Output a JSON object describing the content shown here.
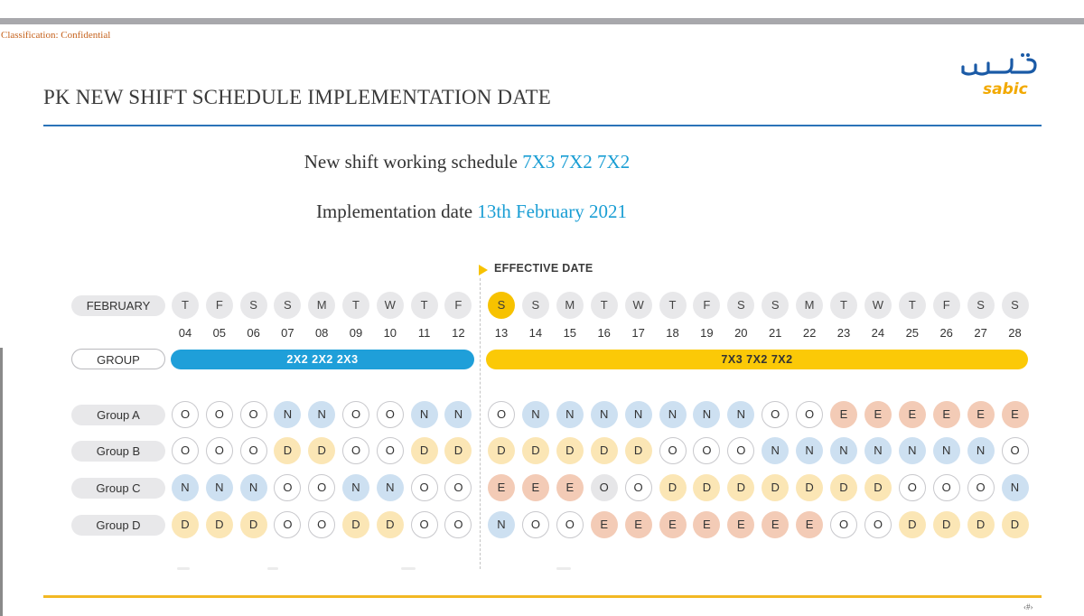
{
  "header": {
    "classification": "Classification: Confidential",
    "title": "PK NEW SHIFT SCHEDULE IMPLEMENTATION DATE",
    "logo_arabic": "سابك",
    "logo_latin": "sabic",
    "page_number": "‹#›"
  },
  "summary": {
    "schedule_prefix": "New shift working schedule ",
    "schedule_value": "7X3 7X2 7X2",
    "date_prefix": "Implementation date ",
    "date_value": "13th February 2021"
  },
  "calendar": {
    "effective_label": "EFFECTIVE DATE",
    "month_label": "FEBRUARY",
    "group_label": "GROUP",
    "old_pattern": "2X2 2X2 2X3",
    "new_pattern": "7X3 7X2 7X2",
    "days": [
      {
        "weekday": "T",
        "date": "04"
      },
      {
        "weekday": "F",
        "date": "05"
      },
      {
        "weekday": "S",
        "date": "06"
      },
      {
        "weekday": "S",
        "date": "07"
      },
      {
        "weekday": "M",
        "date": "08"
      },
      {
        "weekday": "T",
        "date": "09"
      },
      {
        "weekday": "W",
        "date": "10"
      },
      {
        "weekday": "T",
        "date": "11"
      },
      {
        "weekday": "F",
        "date": "12"
      },
      {
        "weekday": "S",
        "date": "13"
      },
      {
        "weekday": "S",
        "date": "14"
      },
      {
        "weekday": "M",
        "date": "15"
      },
      {
        "weekday": "T",
        "date": "16"
      },
      {
        "weekday": "W",
        "date": "17"
      },
      {
        "weekday": "T",
        "date": "18"
      },
      {
        "weekday": "F",
        "date": "19"
      },
      {
        "weekday": "S",
        "date": "20"
      },
      {
        "weekday": "S",
        "date": "21"
      },
      {
        "weekday": "M",
        "date": "22"
      },
      {
        "weekday": "T",
        "date": "23"
      },
      {
        "weekday": "W",
        "date": "24"
      },
      {
        "weekday": "T",
        "date": "25"
      },
      {
        "weekday": "F",
        "date": "26"
      },
      {
        "weekday": "S",
        "date": "27"
      },
      {
        "weekday": "S",
        "date": "28"
      }
    ],
    "effective_index": 9,
    "groups": [
      {
        "name": "Group A",
        "shifts": [
          "O",
          "O",
          "O",
          "N",
          "N",
          "O",
          "O",
          "N",
          "N",
          "O",
          "N",
          "N",
          "N",
          "N",
          "N",
          "N",
          "N",
          "O",
          "O",
          "E",
          "E",
          "E",
          "E",
          "E",
          "E"
        ]
      },
      {
        "name": "Group B",
        "shifts": [
          "O",
          "O",
          "O",
          "D",
          "D",
          "O",
          "O",
          "D",
          "D",
          "D",
          "D",
          "D",
          "D",
          "D",
          "O",
          "O",
          "O",
          "N",
          "N",
          "N",
          "N",
          "N",
          "N",
          "N",
          "O"
        ]
      },
      {
        "name": "Group C",
        "shifts": [
          "N",
          "N",
          "N",
          "O",
          "O",
          "N",
          "N",
          "O",
          "O",
          "E",
          "E",
          "E",
          "O",
          "O",
          "D",
          "D",
          "D",
          "D",
          "D",
          "D",
          "D",
          "O",
          "O",
          "O",
          "N"
        ]
      },
      {
        "name": "Group D",
        "shifts": [
          "D",
          "D",
          "D",
          "O",
          "O",
          "D",
          "D",
          "O",
          "O",
          "N",
          "O",
          "O",
          "E",
          "E",
          "E",
          "E",
          "E",
          "E",
          "E",
          "O",
          "O",
          "D",
          "D",
          "D",
          "D"
        ]
      }
    ],
    "colors": {
      "N": "#cde0f1",
      "D": "#fbe6b5",
      "E": "#f3cbb6",
      "O": "#ffffff",
      "effective": "#f7c200",
      "old_bar": "#1f9fd9",
      "new_bar": "#fbc907"
    }
  }
}
